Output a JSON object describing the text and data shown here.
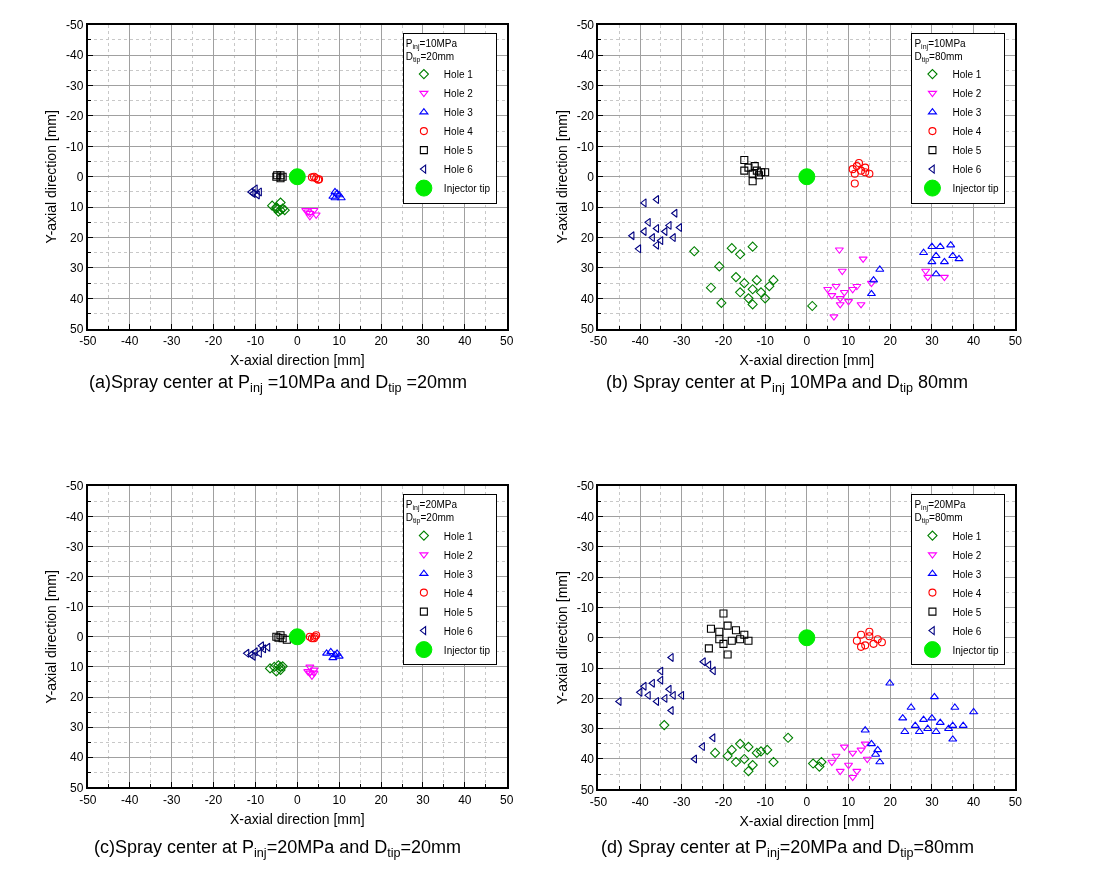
{
  "chart_data": [
    {
      "type": "scatter",
      "xlabel": "X-axial direction [mm]",
      "ylabel": "Y-axial direction [mm]",
      "legend_title": "P$_{inj}$=10MPa\nD$_{tip}$=20mm",
      "annotations": [
        "(a)Spray center at P$_{inj}$ =10MPa and D$_{tip}$ =20mm"
      ],
      "xlim": [
        -50,
        50
      ],
      "ylim": [
        50,
        -50
      ],
      "xticks": [
        -50,
        -40,
        -30,
        -20,
        -10,
        0,
        10,
        20,
        30,
        40,
        50
      ],
      "yticks": [
        -50,
        -40,
        -30,
        -20,
        -10,
        0,
        10,
        20,
        30,
        40,
        50
      ],
      "grid": true,
      "legend": "top right",
      "series": [
        {
          "name": "Hole 1",
          "color": "#008000",
          "marker": "diamond-open",
          "x": [
            -6,
            -5,
            -4,
            -3.5,
            -4.5,
            -4,
            -3,
            -5
          ],
          "values": [
            9.5,
            10,
            11,
            10.5,
            11.5,
            8.5,
            11,
            10.5
          ]
        },
        {
          "name": "Hole 2",
          "color": "#ff00ff",
          "marker": "triangle-down-open",
          "x": [
            2,
            3,
            4,
            3,
            2.5,
            4.5
          ],
          "values": [
            11,
            12,
            11,
            13,
            11.5,
            12.5
          ]
        },
        {
          "name": "Hole 3",
          "color": "#0000ff",
          "marker": "triangle-up-open",
          "x": [
            9,
            10,
            9,
            10.5,
            9.5,
            8.5
          ],
          "values": [
            5,
            6,
            7,
            7,
            5.5,
            6.5
          ]
        },
        {
          "name": "Hole 4",
          "color": "#ff0000",
          "marker": "circle-open",
          "x": [
            4,
            5,
            4.5,
            3.5,
            5.2
          ],
          "values": [
            0,
            1,
            0.5,
            0.2,
            0.8
          ]
        },
        {
          "name": "Hole 5",
          "color": "#000000",
          "marker": "square-open",
          "x": [
            -5,
            -4,
            -4,
            -3.5,
            -4.8
          ],
          "values": [
            0,
            -0.5,
            0.5,
            0,
            -0.5
          ]
        },
        {
          "name": "Hole 6",
          "color": "#000080",
          "marker": "triangle-left-open",
          "x": [
            -11,
            -10,
            -9.5,
            -9,
            -10.5
          ],
          "values": [
            5,
            4,
            6,
            5,
            5.5
          ]
        },
        {
          "name": "Injector tip",
          "color": "#00ee00",
          "marker": "circle",
          "x": [
            0
          ],
          "values": [
            0
          ]
        }
      ]
    },
    {
      "type": "scatter",
      "xlabel": "X-axial direction [mm]",
      "ylabel": "Y-axial direction [mm]",
      "legend_title": "P$_{inj}$=10MPa\nD$_{tip}$=80mm",
      "annotations": [
        "(b) Spray center at P$_{inj}$ 10MPa and D$_{tip}$ 80mm"
      ],
      "xlim": [
        -50,
        50
      ],
      "ylim": [
        50,
        -50
      ],
      "xticks": [
        -50,
        -40,
        -30,
        -20,
        -10,
        0,
        10,
        20,
        30,
        40,
        50
      ],
      "yticks": [
        -50,
        -40,
        -30,
        -20,
        -10,
        0,
        10,
        20,
        30,
        40,
        50
      ],
      "grid": true,
      "legend": "top right",
      "series": [
        {
          "name": "Hole 1",
          "color": "#008000",
          "marker": "diamond-open",
          "x": [
            -27,
            -18,
            -16,
            -13,
            1.3,
            -20.5,
            -23,
            -21,
            -17,
            -15,
            -13,
            -11,
            -10,
            -14,
            -12,
            -16,
            -9,
            -8,
            -13
          ],
          "values": [
            24.5,
            23.5,
            25.5,
            23,
            42.5,
            41.5,
            36.5,
            29.5,
            33,
            35,
            37,
            38,
            40,
            40,
            34,
            38,
            36,
            34,
            42
          ]
        },
        {
          "name": "Hole 2",
          "color": "#ff00ff",
          "marker": "triangle-down-open",
          "x": [
            7.8,
            13.5,
            8.5,
            6.5,
            13,
            15.5,
            5,
            7,
            9,
            11,
            8,
            10,
            6,
            12,
            8,
            28.5,
            29,
            33
          ],
          "values": [
            24,
            27,
            31,
            46,
            42,
            35,
            37,
            36,
            38,
            37,
            40,
            41,
            39,
            36,
            42,
            31,
            33,
            33
          ]
        },
        {
          "name": "Hole 3",
          "color": "#0000ff",
          "marker": "triangle-up-open",
          "x": [
            28,
            30,
            32,
            34.5,
            36.5,
            33,
            30,
            35,
            31,
            17.5,
            16,
            15.5,
            31
          ],
          "values": [
            25,
            23,
            23,
            22.5,
            27,
            28,
            28,
            26,
            26,
            30.5,
            34,
            38.5,
            32
          ]
        },
        {
          "name": "Hole 4",
          "color": "#ff0000",
          "marker": "circle-open",
          "x": [
            11,
            12,
            13,
            14,
            12.5,
            15,
            11.5,
            11.5,
            14
          ],
          "values": [
            -2.5,
            -3.5,
            -2,
            -3,
            -4.5,
            -1,
            -1,
            2.2,
            -1.5
          ]
        },
        {
          "name": "Hole 5",
          "color": "#000000",
          "marker": "square-open",
          "x": [
            -15,
            -14,
            -12,
            -11,
            -13,
            -15,
            -10,
            -13,
            -12.5,
            -11.5
          ],
          "values": [
            -2,
            -3,
            -2,
            -1.5,
            -1,
            -5.5,
            -1.5,
            1.5,
            -3.5,
            -0.5
          ]
        },
        {
          "name": "Hole 6",
          "color": "#000080",
          "marker": "triangle-left-open",
          "x": [
            -39,
            -36,
            -31.6,
            -30.5,
            -41.9,
            -40.3,
            -38,
            -36,
            -34,
            -37,
            -35,
            -39,
            -33,
            -36,
            -32
          ],
          "values": [
            8.6,
            7.5,
            12,
            16.7,
            19.4,
            23.7,
            15,
            17,
            18,
            20,
            21,
            18,
            16,
            22.5,
            20
          ]
        },
        {
          "name": "Injector tip",
          "color": "#00ee00",
          "marker": "circle",
          "x": [
            0
          ],
          "values": [
            0
          ]
        }
      ]
    },
    {
      "type": "scatter",
      "xlabel": "X-axial direction [mm]",
      "ylabel": "Y-axial direction [mm]",
      "legend_title": "P$_{inj}$=20MPa\nD$_{tip}$=20mm",
      "annotations": [
        "(c)Spray center at P$_{inj}$=20MPa and D$_{tip}$=20mm"
      ],
      "xlim": [
        -50,
        50
      ],
      "ylim": [
        50,
        -50
      ],
      "xticks": [
        -50,
        -40,
        -30,
        -20,
        -10,
        0,
        10,
        20,
        30,
        40,
        50
      ],
      "yticks": [
        -50,
        -40,
        -30,
        -20,
        -10,
        0,
        10,
        20,
        30,
        40,
        50
      ],
      "grid": true,
      "legend": "top right",
      "series": [
        {
          "name": "Hole 1",
          "color": "#008000",
          "marker": "diamond-open",
          "x": [
            -6.5,
            -5.5,
            -4.5,
            -4,
            -5,
            -4,
            -3.5
          ],
          "values": [
            10.5,
            10,
            9.5,
            11,
            11.5,
            10,
            9.8
          ]
        },
        {
          "name": "Hole 2",
          "color": "#ff00ff",
          "marker": "triangle-down-open",
          "x": [
            3,
            4,
            3,
            3.5,
            2.5,
            4
          ],
          "values": [
            10,
            11,
            12,
            13,
            11.5,
            12
          ]
        },
        {
          "name": "Hole 3",
          "color": "#0000ff",
          "marker": "triangle-up-open",
          "x": [
            7,
            8,
            9,
            10,
            8.5,
            9.5
          ],
          "values": [
            5.5,
            5,
            6,
            6.5,
            7,
            5.5
          ]
        },
        {
          "name": "Hole 4",
          "color": "#ff0000",
          "marker": "circle-open",
          "x": [
            3,
            4,
            4.5,
            3.5,
            4.2
          ],
          "values": [
            0,
            0.5,
            -0.5,
            0.5,
            0
          ]
        },
        {
          "name": "Hole 5",
          "color": "#000000",
          "marker": "square-open",
          "x": [
            -5,
            -4,
            -3.5,
            -4.5,
            -2.5
          ],
          "values": [
            0,
            -0.5,
            0.5,
            0.3,
            1
          ]
        },
        {
          "name": "Hole 6",
          "color": "#000080",
          "marker": "triangle-left-open",
          "x": [
            -12,
            -11,
            -10,
            -8,
            -7,
            -9,
            -10.5,
            -8.5
          ],
          "values": [
            5.5,
            6,
            5,
            4,
            3.5,
            5.5,
            6.5,
            3
          ]
        },
        {
          "name": "Injector tip",
          "color": "#00ee00",
          "marker": "circle",
          "x": [
            0
          ],
          "values": [
            0
          ]
        }
      ]
    },
    {
      "type": "scatter",
      "xlabel": "X-axial direction [mm]",
      "ylabel": "Y-axial direction [mm]",
      "legend_title": "P$_{inj}$=20MPa\nD$_{tip}$=80mm",
      "annotations": [
        "(d) Spray center at P$_{inj}$=20MPa and D$_{tip}$=80mm"
      ],
      "xlim": [
        -50,
        50
      ],
      "ylim": [
        50,
        -50
      ],
      "xticks": [
        -50,
        -40,
        -30,
        -20,
        -10,
        0,
        10,
        20,
        30,
        40,
        50
      ],
      "yticks": [
        -50,
        -40,
        -30,
        -20,
        -10,
        0,
        10,
        20,
        30,
        40,
        50
      ],
      "grid": true,
      "legend": "top right",
      "series": [
        {
          "name": "Hole 1",
          "color": "#008000",
          "marker": "diamond-open",
          "x": [
            -18,
            -16,
            -14,
            -12,
            -15,
            -17,
            -13,
            -11,
            -19,
            -14,
            -22,
            -8,
            -9.5,
            -4.5,
            -34.2,
            1.5,
            3,
            3.5
          ],
          "values": [
            37,
            35,
            36,
            38,
            40,
            41,
            42,
            37.5,
            39,
            44,
            38,
            41,
            37,
            33,
            28.8,
            41.5,
            42.5,
            41
          ]
        },
        {
          "name": "Hole 2",
          "color": "#ff00ff",
          "marker": "triangle-down-open",
          "x": [
            7,
            9,
            11,
            13,
            10,
            8,
            12,
            6,
            11,
            14,
            14.5
          ],
          "values": [
            39,
            36,
            38,
            37,
            42,
            44,
            44,
            41,
            46,
            35,
            40
          ]
        },
        {
          "name": "Hole 3",
          "color": "#0000ff",
          "marker": "triangle-up-open",
          "x": [
            26,
            28,
            30,
            32,
            34,
            31,
            27,
            29,
            35,
            19.9,
            30.6,
            25,
            35.5,
            40,
            23,
            37.5,
            23.5,
            35,
            14,
            15.5,
            17,
            17.5,
            16.5
          ],
          "values": [
            29,
            27,
            26.5,
            28,
            30,
            31,
            31,
            30,
            29,
            15,
            19.5,
            23,
            23,
            24.5,
            26.5,
            29,
            31,
            33.5,
            30.5,
            35,
            37,
            41,
            38.5
          ]
        },
        {
          "name": "Hole 4",
          "color": "#ff0000",
          "marker": "circle-open",
          "x": [
            12,
            13,
            15,
            17,
            14,
            16,
            13,
            18,
            15
          ],
          "values": [
            1,
            -1,
            -2,
            0.5,
            2.5,
            2,
            3,
            1.5,
            -0.5
          ]
        },
        {
          "name": "Hole 5",
          "color": "#000000",
          "marker": "square-open",
          "x": [
            -23,
            -21,
            -19,
            -17,
            -15,
            -14,
            -18,
            -20,
            -23.5,
            -20,
            -16,
            -21,
            -19
          ],
          "values": [
            -3,
            -2,
            -4,
            -2.5,
            -1,
            1,
            1,
            2,
            3.5,
            -8,
            0.5,
            0.5,
            5.5
          ]
        },
        {
          "name": "Hole 6",
          "color": "#000080",
          "marker": "triangle-left-open",
          "x": [
            -39,
            -37,
            -35,
            -33,
            -34,
            -36,
            -38,
            -40,
            -32,
            -45,
            -32.5,
            -35,
            -30,
            -32.5,
            -24.8,
            -23.5,
            -22.4,
            -22.5,
            -25,
            -26.9
          ],
          "values": [
            16,
            15,
            14,
            17,
            20,
            21,
            19,
            18,
            19,
            21,
            6.5,
            11,
            19,
            24,
            7.9,
            9,
            10.9,
            33,
            35.9,
            40
          ]
        },
        {
          "name": "Injector tip",
          "color": "#00ee00",
          "marker": "circle",
          "x": [
            0
          ],
          "values": [
            0
          ]
        }
      ]
    }
  ]
}
